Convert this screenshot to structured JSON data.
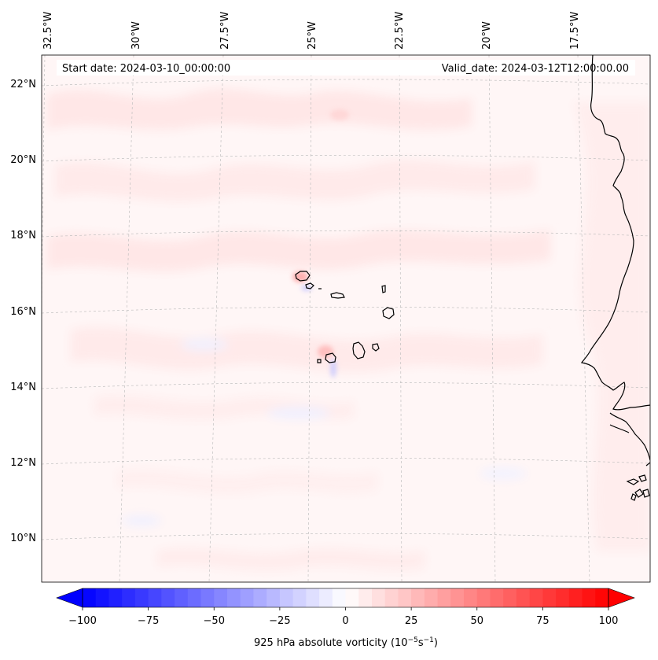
{
  "header": {
    "start_date": "Start date: 2024-03-10_00:00:00",
    "valid_date": "Valid_date: 2024-03-12T12:00:00.00"
  },
  "map": {
    "lon_labels": [
      "32.5°W",
      "30°W",
      "27.5°W",
      "25°W",
      "22.5°W",
      "20°W",
      "17.5°W"
    ],
    "lat_labels": [
      "22°N",
      "20°N",
      "18°N",
      "16°N",
      "14°N",
      "12°N",
      "10°N"
    ],
    "gridlines": "dashed"
  },
  "colorbar": {
    "tick_labels": [
      "−100",
      "−75",
      "−50",
      "−25",
      "0",
      "25",
      "50",
      "75",
      "100"
    ],
    "title_prefix": "925 hPa absolute vorticity (10",
    "title_exp1": "−5",
    "title_mid": "s",
    "title_exp2": "−1",
    "title_suffix": ")",
    "min": -100,
    "max": 100,
    "step": 5,
    "colors": {
      "low": "#0000ff",
      "mid": "#ffffff",
      "high": "#ff0000"
    }
  },
  "colors": {
    "background_field": "#fff6f6",
    "coastline": "#000000",
    "grid": "#b0b0b0"
  }
}
